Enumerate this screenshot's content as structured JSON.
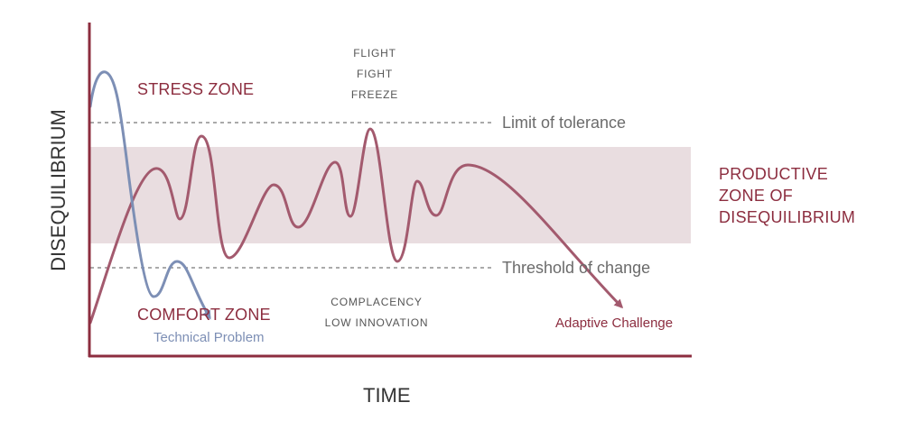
{
  "axes": {
    "y_label": "DISEQUILIBRIUM",
    "x_label": "TIME"
  },
  "zones": {
    "stress": "STRESS ZONE",
    "comfort": "COMFORT ZONE",
    "productive": [
      "PRODUCTIVE",
      "ZONE OF",
      "DISEQUILIBRIUM"
    ]
  },
  "reactions": [
    "FLIGHT",
    "FIGHT",
    "FREEZE"
  ],
  "complacency": [
    "COMPLACENCY",
    "LOW INNOVATION"
  ],
  "limits": {
    "tolerance": "Limit of tolerance",
    "threshold": "Threshold of change"
  },
  "curves": {
    "technical": "Technical Problem",
    "adaptive": "Adaptive Challenge"
  },
  "colors": {
    "axis": "#8c2d3f",
    "adaptive_curve": "#a35a6e",
    "technical_curve": "#7d8fb5",
    "band": "#e9dde0",
    "dashed_line": "#666666"
  }
}
